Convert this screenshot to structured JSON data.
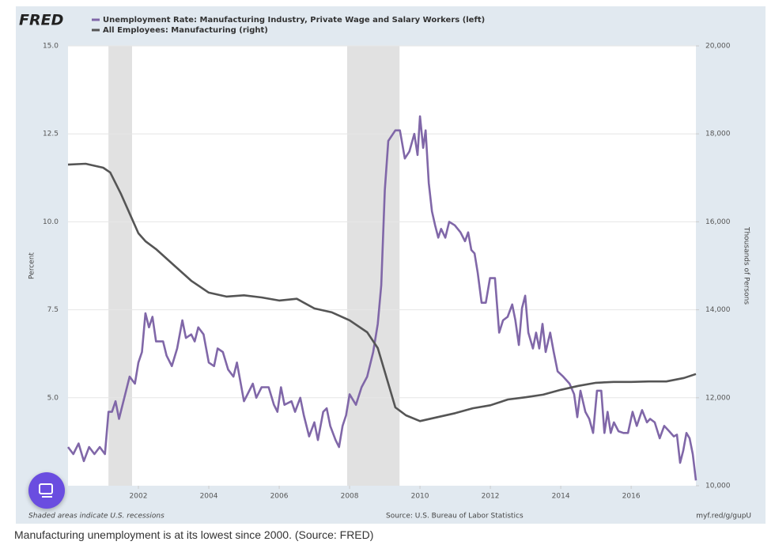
{
  "logo": "FRED",
  "caption": "Manufacturing unemployment is at its lowest since 2000. (Source: FRED)",
  "chart_data": {
    "type": "line",
    "ylabel": "Percent",
    "y2label": "Thousands of Persons",
    "note": "Shaded areas indicate U.S. recessions",
    "source": "Source: U.S. Bureau of Labor Statistics",
    "url": "myf.red/g/gupU",
    "xlim": [
      2000,
      2017.84
    ],
    "xticks": [
      2002,
      2004,
      2006,
      2008,
      2010,
      2012,
      2014,
      2016
    ],
    "ylim": [
      2.5,
      15
    ],
    "yticks": [
      {
        "value": 5,
        "label": "5.0"
      },
      {
        "value": 7.5,
        "label": "7.5"
      },
      {
        "value": 10,
        "label": "10.0"
      },
      {
        "value": 12.5,
        "label": "12.5"
      },
      {
        "value": 15,
        "label": "15.0"
      }
    ],
    "y2lim": [
      10000,
      20000
    ],
    "y2ticks": [
      {
        "value": 10000,
        "label": "10,000"
      },
      {
        "value": 12000,
        "label": "12,000"
      },
      {
        "value": 14000,
        "label": "14,000"
      },
      {
        "value": 16000,
        "label": "16,000"
      },
      {
        "value": 18000,
        "label": "18,000"
      },
      {
        "value": 20000,
        "label": "20,000"
      }
    ],
    "grid": true,
    "recessions": [
      [
        2001.15,
        2001.82
      ],
      [
        2007.93,
        2009.42
      ]
    ],
    "series": [
      {
        "name": "Unemployment Rate: Manufacturing Industry, Private Wage and Salary Workers (left)",
        "color": "#8067a8",
        "axis": "y",
        "x": [
          2000.0,
          2000.15,
          2000.3,
          2000.45,
          2000.6,
          2000.75,
          2000.9,
          2001.05,
          2001.15,
          2001.25,
          2001.35,
          2001.45,
          2001.6,
          2001.75,
          2001.9,
          2002.0,
          2002.1,
          2002.2,
          2002.3,
          2002.4,
          2002.5,
          2002.7,
          2002.8,
          2002.95,
          2003.1,
          2003.25,
          2003.35,
          2003.5,
          2003.6,
          2003.7,
          2003.85,
          2004.0,
          2004.15,
          2004.25,
          2004.4,
          2004.55,
          2004.7,
          2004.8,
          2005.0,
          2005.1,
          2005.25,
          2005.35,
          2005.5,
          2005.7,
          2005.85,
          2005.95,
          2006.05,
          2006.15,
          2006.35,
          2006.45,
          2006.6,
          2006.7,
          2006.85,
          2007.0,
          2007.1,
          2007.25,
          2007.35,
          2007.45,
          2007.6,
          2007.7,
          2007.8,
          2007.9,
          2008.0,
          2008.18,
          2008.34,
          2008.5,
          2008.67,
          2008.8,
          2008.9,
          2009.0,
          2009.1,
          2009.3,
          2009.43,
          2009.57,
          2009.7,
          2009.84,
          2009.93,
          2010.0,
          2010.09,
          2010.16,
          2010.25,
          2010.34,
          2010.43,
          2010.52,
          2010.6,
          2010.72,
          2010.83,
          2010.99,
          2011.15,
          2011.28,
          2011.37,
          2011.46,
          2011.55,
          2011.64,
          2011.75,
          2011.87,
          2011.99,
          2012.13,
          2012.25,
          2012.36,
          2012.49,
          2012.62,
          2012.71,
          2012.81,
          2012.9,
          2012.99,
          2013.08,
          2013.21,
          2013.3,
          2013.39,
          2013.48,
          2013.57,
          2013.7,
          2013.8,
          2013.91,
          2014.07,
          2014.25,
          2014.38,
          2014.47,
          2014.56,
          2014.7,
          2014.81,
          2014.92,
          2015.03,
          2015.15,
          2015.24,
          2015.33,
          2015.42,
          2015.51,
          2015.64,
          2015.78,
          2015.91,
          2016.04,
          2016.16,
          2016.31,
          2016.45,
          2016.54,
          2016.67,
          2016.81,
          2016.94,
          2017.08,
          2017.21,
          2017.3,
          2017.39,
          2017.48,
          2017.57,
          2017.66,
          2017.75,
          2017.84
        ],
        "values": [
          3.6,
          3.4,
          3.7,
          3.2,
          3.6,
          3.4,
          3.6,
          3.4,
          4.6,
          4.6,
          4.9,
          4.4,
          5.0,
          5.6,
          5.4,
          6.0,
          6.3,
          7.4,
          7.0,
          7.3,
          6.6,
          6.6,
          6.2,
          5.9,
          6.4,
          7.2,
          6.7,
          6.8,
          6.6,
          7.0,
          6.8,
          6.0,
          5.9,
          6.4,
          6.3,
          5.8,
          5.6,
          6.0,
          4.9,
          5.1,
          5.4,
          5.0,
          5.3,
          5.3,
          4.8,
          4.6,
          5.3,
          4.8,
          4.9,
          4.6,
          5.0,
          4.5,
          3.9,
          4.3,
          3.8,
          4.6,
          4.7,
          4.2,
          3.8,
          3.6,
          4.2,
          4.5,
          5.1,
          4.8,
          5.3,
          5.6,
          6.3,
          7.1,
          8.2,
          10.9,
          12.3,
          12.6,
          12.6,
          11.8,
          12.0,
          12.5,
          11.9,
          13.0,
          12.1,
          12.6,
          11.1,
          10.3,
          9.9,
          9.55,
          9.8,
          9.55,
          10.0,
          9.9,
          9.7,
          9.45,
          9.7,
          9.2,
          9.1,
          8.55,
          7.7,
          7.7,
          8.4,
          8.4,
          6.85,
          7.2,
          7.3,
          7.65,
          7.2,
          6.5,
          7.55,
          7.9,
          6.85,
          6.4,
          6.85,
          6.4,
          7.1,
          6.3,
          6.85,
          6.3,
          5.75,
          5.6,
          5.4,
          5.1,
          4.45,
          5.2,
          4.6,
          4.4,
          4.0,
          5.2,
          5.2,
          4.0,
          4.6,
          4.0,
          4.3,
          4.05,
          4.0,
          4.0,
          4.6,
          4.2,
          4.65,
          4.3,
          4.4,
          4.3,
          3.85,
          4.2,
          4.05,
          3.9,
          3.95,
          3.15,
          3.5,
          4.0,
          3.85,
          3.4,
          2.65
        ]
      },
      {
        "name": "All Employees: Manufacturing (right)",
        "color": "#555555",
        "axis": "y2",
        "x": [
          2000.0,
          2000.5,
          2001.0,
          2001.2,
          2001.5,
          2001.8,
          2002.0,
          2002.2,
          2002.5,
          2003.0,
          2003.5,
          2004.0,
          2004.5,
          2005.0,
          2005.5,
          2006.0,
          2006.5,
          2007.0,
          2007.5,
          2008.0,
          2008.5,
          2008.8,
          2009.0,
          2009.3,
          2009.6,
          2010.0,
          2010.5,
          2011.0,
          2011.5,
          2012.0,
          2012.5,
          2013.0,
          2013.5,
          2014.0,
          2014.5,
          2015.0,
          2015.5,
          2016.0,
          2016.5,
          2017.0,
          2017.5,
          2017.84
        ],
        "values": [
          17300,
          17320,
          17230,
          17120,
          16640,
          16100,
          15740,
          15560,
          15380,
          15020,
          14660,
          14390,
          14300,
          14330,
          14280,
          14210,
          14250,
          14030,
          13940,
          13760,
          13490,
          13130,
          12590,
          11780,
          11600,
          11470,
          11560,
          11650,
          11760,
          11830,
          11960,
          12010,
          12070,
          12180,
          12270,
          12340,
          12360,
          12360,
          12370,
          12370,
          12450,
          12540
        ]
      }
    ]
  }
}
